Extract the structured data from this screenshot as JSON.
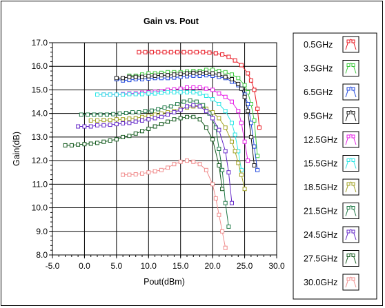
{
  "chart_data": {
    "type": "line",
    "title": "Gain vs. Pout",
    "xlabel": "Pout(dBm)",
    "ylabel": "Gain(dB)",
    "xlim": [
      -5.0,
      30.0
    ],
    "ylim": [
      8.0,
      17.0
    ],
    "xticks": [
      "-5.0",
      "0.0",
      "5.0",
      "10.0",
      "15.0",
      "20.0",
      "25.0",
      "30.0"
    ],
    "yticks": [
      "8.0",
      "9.0",
      "10.0",
      "11.0",
      "12.0",
      "13.0",
      "14.0",
      "15.0",
      "16.0",
      "17.0"
    ],
    "grid": true,
    "legend_position": "right",
    "series": [
      {
        "name": "0.5GHz",
        "color": "#e8141e",
        "x": [
          8.5,
          9.5,
          10.5,
          11.5,
          12.5,
          13.5,
          14.5,
          15.5,
          16.5,
          17.5,
          18.5,
          19.5,
          20.5,
          21.5,
          22.5,
          23.5,
          24.5,
          25.5,
          26.0,
          26.5,
          27.0,
          27.3
        ],
        "y": [
          16.6,
          16.6,
          16.6,
          16.6,
          16.6,
          16.6,
          16.6,
          16.6,
          16.6,
          16.6,
          16.6,
          16.58,
          16.55,
          16.5,
          16.4,
          16.25,
          16.05,
          15.7,
          15.4,
          15.0,
          14.2,
          13.4
        ]
      },
      {
        "name": "3.5GHz",
        "color": "#3cc83c",
        "x": [
          7.0,
          8.0,
          9.0,
          10.0,
          11.0,
          12.0,
          13.0,
          14.0,
          15.0,
          16.0,
          17.0,
          18.0,
          19.0,
          20.0,
          21.0,
          22.0,
          23.0,
          24.0,
          25.0,
          25.5,
          26.0,
          26.5,
          27.0
        ],
        "y": [
          15.6,
          15.6,
          15.65,
          15.7,
          15.7,
          15.72,
          15.75,
          15.75,
          15.75,
          15.78,
          15.8,
          15.8,
          15.85,
          15.85,
          15.8,
          15.75,
          15.65,
          15.5,
          15.2,
          14.9,
          14.4,
          13.7,
          12.2
        ]
      },
      {
        "name": "6.5GHz",
        "color": "#1e46dc",
        "x": [
          5.0,
          6.0,
          7.0,
          8.0,
          9.0,
          10.0,
          11.0,
          12.0,
          13.0,
          14.0,
          15.0,
          16.0,
          17.0,
          18.0,
          19.0,
          20.0,
          21.0,
          22.0,
          23.0,
          24.0,
          24.5,
          25.0,
          25.5,
          26.0,
          26.5,
          27.0
        ],
        "y": [
          15.45,
          15.4,
          15.42,
          15.45,
          15.45,
          15.48,
          15.5,
          15.5,
          15.5,
          15.52,
          15.55,
          15.58,
          15.6,
          15.6,
          15.62,
          15.6,
          15.55,
          15.5,
          15.35,
          15.2,
          15.05,
          14.8,
          14.4,
          13.6,
          12.6,
          11.6
        ]
      },
      {
        "name": "9.5GHz",
        "color": "#141414",
        "x": [
          5.0,
          6.0,
          7.0,
          8.0,
          9.0,
          10.0,
          11.0,
          12.0,
          13.0,
          14.0,
          15.0,
          16.0,
          17.0,
          18.0,
          19.0,
          20.0,
          21.0,
          22.0,
          23.0,
          24.0,
          24.5,
          25.0,
          25.5,
          26.0,
          26.5
        ],
        "y": [
          15.5,
          15.5,
          15.55,
          15.55,
          15.55,
          15.58,
          15.6,
          15.62,
          15.62,
          15.65,
          15.68,
          15.7,
          15.72,
          15.72,
          15.72,
          15.7,
          15.65,
          15.55,
          15.45,
          15.25,
          15.05,
          14.7,
          14.1,
          13.0,
          11.8
        ]
      },
      {
        "name": "12.5GHz",
        "color": "#e61ee6",
        "x": [
          3.0,
          4.0,
          5.0,
          6.0,
          7.0,
          8.0,
          9.0,
          10.0,
          11.0,
          12.0,
          13.0,
          14.0,
          15.0,
          16.0,
          17.0,
          18.0,
          19.0,
          20.0,
          21.0,
          22.0,
          23.0,
          24.0,
          24.5,
          25.0,
          25.5
        ],
        "y": [
          14.8,
          14.8,
          14.8,
          14.82,
          14.85,
          14.85,
          14.88,
          14.9,
          14.92,
          14.95,
          15.0,
          15.02,
          15.05,
          15.1,
          15.1,
          15.1,
          15.05,
          15.0,
          14.85,
          14.7,
          14.5,
          14.1,
          13.6,
          12.8,
          12.0
        ]
      },
      {
        "name": "15.5GHz",
        "color": "#28e6e6",
        "x": [
          2.0,
          3.0,
          4.0,
          5.0,
          6.0,
          7.0,
          8.0,
          9.0,
          10.0,
          11.0,
          12.0,
          13.0,
          14.0,
          15.0,
          16.0,
          17.0,
          18.0,
          19.0,
          20.0,
          21.0,
          22.0,
          23.0,
          23.5,
          24.0,
          24.5
        ],
        "y": [
          14.8,
          14.8,
          14.8,
          14.8,
          14.8,
          14.82,
          14.82,
          14.82,
          14.85,
          14.85,
          14.88,
          14.9,
          14.9,
          14.9,
          14.9,
          14.9,
          14.85,
          14.75,
          14.6,
          14.4,
          14.1,
          13.6,
          13.1,
          12.4,
          11.6
        ]
      },
      {
        "name": "18.5GHz",
        "color": "#a0a020",
        "x": [
          1.0,
          2.0,
          3.0,
          4.0,
          5.0,
          6.0,
          7.0,
          8.0,
          9.0,
          10.0,
          11.0,
          12.0,
          13.0,
          14.0,
          15.0,
          16.0,
          17.0,
          18.0,
          19.0,
          20.0,
          21.0,
          22.0,
          23.0,
          23.5,
          24.0,
          24.5,
          25.0
        ],
        "y": [
          13.7,
          13.7,
          13.72,
          13.72,
          13.75,
          13.75,
          13.78,
          13.8,
          13.85,
          13.9,
          13.95,
          14.0,
          14.05,
          14.1,
          14.2,
          14.25,
          14.3,
          14.3,
          14.2,
          14.05,
          13.8,
          13.4,
          12.8,
          12.4,
          11.9,
          11.4,
          10.8
        ]
      },
      {
        "name": "21.5GHz",
        "color": "#1e7846",
        "x": [
          -0.5,
          0.5,
          1.5,
          2.5,
          3.5,
          4.5,
          5.5,
          6.5,
          7.5,
          8.5,
          9.5,
          10.5,
          11.5,
          12.5,
          13.5,
          14.5,
          15.5,
          16.5,
          17.5,
          18.5,
          19.5,
          20.5,
          21.0,
          21.5,
          22.0,
          22.5
        ],
        "y": [
          13.95,
          13.95,
          13.95,
          13.95,
          13.95,
          13.97,
          14.0,
          14.02,
          14.05,
          14.05,
          14.1,
          14.12,
          14.18,
          14.25,
          14.3,
          14.4,
          14.5,
          14.55,
          14.5,
          14.35,
          14.0,
          13.4,
          12.5,
          11.6,
          10.2,
          9.2
        ]
      },
      {
        "name": "24.5GHz",
        "color": "#6428c8",
        "x": [
          -1.0,
          0.0,
          1.0,
          2.0,
          3.0,
          4.0,
          5.0,
          6.0,
          7.0,
          8.0,
          9.0,
          10.0,
          11.0,
          12.0,
          13.0,
          14.0,
          15.0,
          16.0,
          17.0,
          18.0,
          19.0,
          20.0,
          21.0,
          22.0,
          22.5,
          23.0
        ],
        "y": [
          13.45,
          13.45,
          13.45,
          13.5,
          13.5,
          13.52,
          13.55,
          13.58,
          13.6,
          13.65,
          13.7,
          13.75,
          13.8,
          13.85,
          13.95,
          14.05,
          14.15,
          14.3,
          14.35,
          14.3,
          14.1,
          13.8,
          13.3,
          12.4,
          11.5,
          10.2
        ]
      },
      {
        "name": "27.5GHz",
        "color": "#145a1e",
        "x": [
          -3.0,
          -2.0,
          -1.0,
          0.0,
          1.0,
          2.0,
          3.0,
          4.0,
          5.0,
          6.0,
          7.0,
          8.0,
          9.0,
          10.0,
          11.0,
          12.0,
          13.0,
          14.0,
          15.0,
          16.0,
          17.0,
          18.0,
          19.0,
          20.0,
          21.0,
          21.5
        ],
        "y": [
          12.65,
          12.65,
          12.68,
          12.7,
          12.72,
          12.75,
          12.8,
          12.85,
          12.9,
          13.0,
          13.05,
          13.15,
          13.25,
          13.35,
          13.45,
          13.55,
          13.65,
          13.75,
          13.8,
          13.85,
          13.85,
          13.75,
          13.4,
          12.9,
          11.8,
          10.8
        ]
      },
      {
        "name": "30.0GHz",
        "color": "#f08c8c",
        "x": [
          6.0,
          7.0,
          8.0,
          9.0,
          10.0,
          11.0,
          12.0,
          13.0,
          14.0,
          15.0,
          16.0,
          17.0,
          18.0,
          19.0,
          20.0,
          20.5,
          21.0,
          21.5,
          22.0
        ],
        "y": [
          11.4,
          11.4,
          11.42,
          11.45,
          11.5,
          11.55,
          11.6,
          11.7,
          11.85,
          11.95,
          12.0,
          11.95,
          11.85,
          11.6,
          11.0,
          10.4,
          9.7,
          9.0,
          8.3
        ]
      }
    ]
  }
}
